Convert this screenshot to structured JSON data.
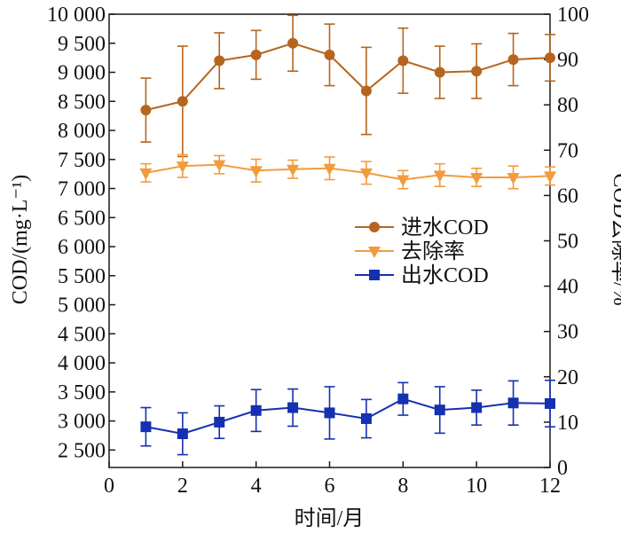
{
  "chart_data": {
    "type": "line",
    "xlabel": "时间/月",
    "ylabel_left": "COD/(mg·L⁻¹)",
    "ylabel_right": "COD去除率/%",
    "xlim": [
      0,
      12
    ],
    "ylim_left": [
      2200,
      10000
    ],
    "ylim_right": [
      0,
      100
    ],
    "x_ticks": [
      0,
      2,
      4,
      6,
      8,
      10,
      12
    ],
    "x_tick_labels": [
      "0",
      "2",
      "4",
      "6",
      "8",
      "10",
      "12"
    ],
    "y_left_ticks": [
      2500,
      3000,
      3500,
      4000,
      4500,
      5000,
      5500,
      6000,
      6500,
      7000,
      7500,
      8000,
      8500,
      9000,
      9500,
      10000
    ],
    "y_left_tick_labels": [
      "2 500",
      "3 000",
      "3 500",
      "4 000",
      "4 500",
      "5 000",
      "5 500",
      "6 000",
      "6 500",
      "7 000",
      "7 500",
      "8 000",
      "8 500",
      "9 000",
      "9 500",
      "10 000"
    ],
    "y_right_ticks": [
      0,
      10,
      20,
      30,
      40,
      50,
      60,
      70,
      80,
      90,
      100
    ],
    "y_right_tick_labels": [
      "0",
      "10",
      "20",
      "30",
      "40",
      "50",
      "60",
      "70",
      "80",
      "90",
      "100"
    ],
    "grid": false,
    "legend_position": "center-right",
    "series": [
      {
        "name": "进水COD",
        "axis": "left",
        "marker": "circle",
        "color": "#B5651D",
        "x": [
          1,
          2,
          3,
          4,
          5,
          6,
          7,
          8,
          9,
          10,
          11,
          12
        ],
        "values": [
          8350,
          8500,
          9200,
          9300,
          9500,
          9300,
          8680,
          9200,
          9000,
          9020,
          9220,
          9250
        ],
        "err": [
          550,
          950,
          480,
          420,
          480,
          530,
          750,
          560,
          450,
          470,
          450,
          400
        ]
      },
      {
        "name": "去除率",
        "axis": "right",
        "marker": "triangle-down",
        "color": "#F29B3D",
        "x": [
          1,
          2,
          3,
          4,
          5,
          6,
          7,
          8,
          9,
          10,
          11,
          12
        ],
        "values": [
          65,
          66.5,
          66.8,
          65.5,
          65.8,
          66,
          65,
          63.5,
          64.5,
          64,
          64,
          64.3
        ],
        "err": [
          2,
          2.5,
          2,
          2.5,
          2,
          2.5,
          2.5,
          2,
          2.5,
          2,
          2.5,
          2
        ]
      },
      {
        "name": "出水COD",
        "axis": "left",
        "marker": "square",
        "color": "#1530B0",
        "x": [
          1,
          2,
          3,
          4,
          5,
          6,
          7,
          8,
          9,
          10,
          11,
          12
        ],
        "values": [
          2900,
          2780,
          2980,
          3180,
          3230,
          3140,
          3040,
          3380,
          3190,
          3230,
          3310,
          3300
        ],
        "err": [
          330,
          360,
          280,
          360,
          320,
          450,
          330,
          280,
          400,
          300,
          380,
          400
        ]
      }
    ]
  }
}
